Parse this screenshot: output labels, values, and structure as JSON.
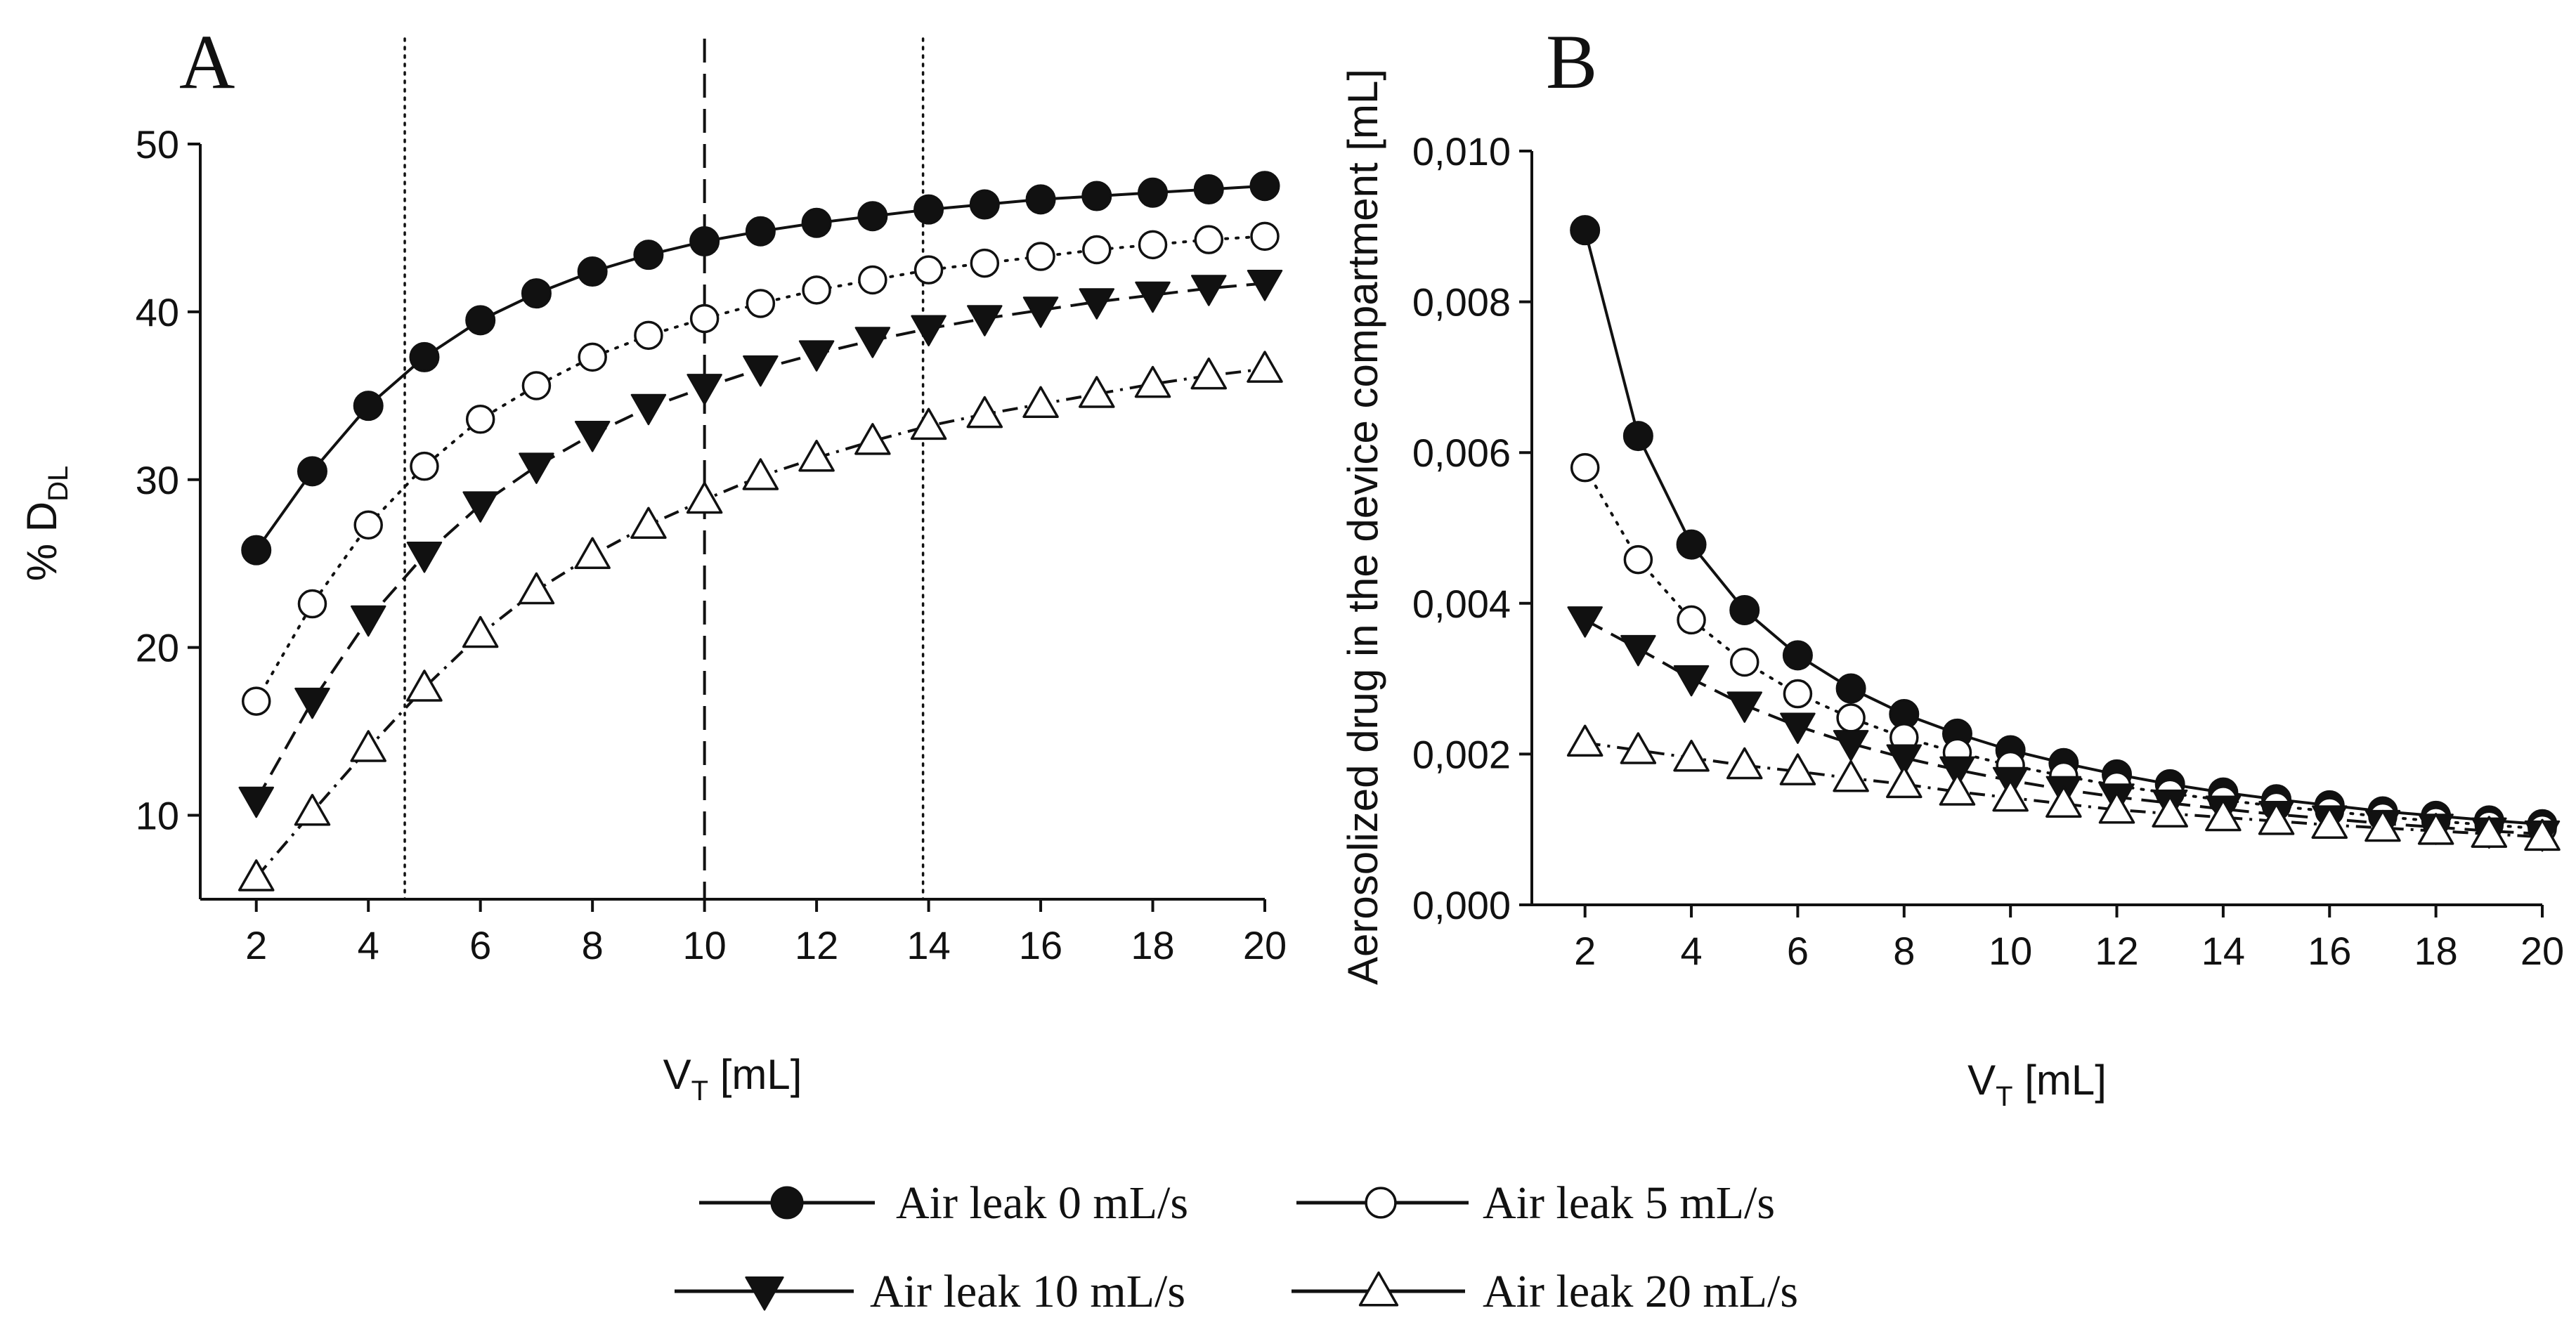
{
  "legend": [
    {
      "label": "Air leak 0 mL/s",
      "marker": "filled-circle",
      "line": "solid"
    },
    {
      "label": "Air leak 5 mL/s",
      "marker": "open-circle",
      "line": "dotted"
    },
    {
      "label": "Air leak 10 mL/s",
      "marker": "filled-triangle-down",
      "line": "dashed"
    },
    {
      "label": "Air leak 20 mL/s",
      "marker": "open-triangle-up",
      "line": "dash-dot"
    }
  ],
  "chart_data": [
    {
      "panel": "A",
      "type": "line",
      "xlabel_main": "V",
      "xlabel_sub": "T",
      "xlabel_unit": " [mL]",
      "ylabel_main": "% D",
      "ylabel_sub": "DL",
      "x": [
        2,
        3,
        4,
        5,
        6,
        7,
        8,
        9,
        10,
        11,
        12,
        13,
        14,
        15,
        16,
        17,
        18,
        19,
        20
      ],
      "xlim": [
        1,
        20
      ],
      "xticks": [
        2,
        4,
        6,
        8,
        10,
        12,
        14,
        16,
        18,
        20
      ],
      "xtick_labels": [
        "2",
        "4",
        "6",
        "8",
        "10",
        "12",
        "14",
        "16",
        "18",
        "20"
      ],
      "ylim": [
        5,
        50
      ],
      "yticks": [
        10,
        20,
        30,
        40,
        50
      ],
      "ytick_labels": [
        "10",
        "20",
        "30",
        "40",
        "50"
      ],
      "vlines": [
        {
          "x": 4.65,
          "style": "dotted"
        },
        {
          "x": 10.0,
          "style": "dashed"
        },
        {
          "x": 13.9,
          "style": "dotted"
        }
      ],
      "series": [
        {
          "name": "Air leak 0 mL/s",
          "values": [
            25.8,
            30.5,
            34.4,
            37.3,
            39.5,
            41.1,
            42.4,
            43.4,
            44.2,
            44.8,
            45.3,
            45.7,
            46.1,
            46.4,
            46.7,
            46.9,
            47.1,
            47.3,
            47.5
          ]
        },
        {
          "name": "Air leak 5 mL/s",
          "values": [
            16.8,
            22.6,
            27.3,
            30.8,
            33.6,
            35.6,
            37.3,
            38.6,
            39.6,
            40.5,
            41.3,
            41.9,
            42.5,
            42.9,
            43.3,
            43.7,
            44.0,
            44.3,
            44.5
          ]
        },
        {
          "name": "Air leak 10 mL/s",
          "values": [
            10.9,
            16.8,
            21.7,
            25.5,
            28.5,
            30.8,
            32.7,
            34.3,
            35.5,
            36.6,
            37.5,
            38.3,
            39.0,
            39.6,
            40.1,
            40.6,
            41.0,
            41.4,
            41.7
          ]
        },
        {
          "name": "Air leak 20 mL/s",
          "values": [
            6.3,
            10.2,
            14.0,
            17.6,
            20.8,
            23.4,
            25.5,
            27.3,
            28.8,
            30.2,
            31.3,
            32.3,
            33.2,
            33.9,
            34.5,
            35.1,
            35.7,
            36.2,
            36.6
          ]
        }
      ]
    },
    {
      "panel": "B",
      "type": "line",
      "xlabel_main": "V",
      "xlabel_sub": "T",
      "xlabel_unit": " [mL]",
      "ylabel": "Aerosolized drug in the device compartment [mL]",
      "x": [
        2,
        3,
        4,
        5,
        6,
        7,
        8,
        9,
        10,
        11,
        12,
        13,
        14,
        15,
        16,
        17,
        18,
        19,
        20
      ],
      "xlim": [
        1,
        20
      ],
      "xticks": [
        2,
        4,
        6,
        8,
        10,
        12,
        14,
        16,
        18,
        20
      ],
      "xtick_labels": [
        "2",
        "4",
        "6",
        "8",
        "10",
        "12",
        "14",
        "16",
        "18",
        "20"
      ],
      "ylim": [
        0,
        0.01
      ],
      "yticks": [
        0,
        0.002,
        0.004,
        0.006,
        0.008,
        0.01
      ],
      "ytick_labels": [
        "0,000",
        "0,002",
        "0,004",
        "0,006",
        "0,008",
        "0,010"
      ],
      "series": [
        {
          "name": "Air leak 0 mL/s",
          "values": [
            0.00895,
            0.00622,
            0.00478,
            0.00391,
            0.00331,
            0.00287,
            0.00253,
            0.00227,
            0.00205,
            0.00188,
            0.00173,
            0.0016,
            0.00149,
            0.0014,
            0.00132,
            0.00124,
            0.00118,
            0.00112,
            0.00107
          ]
        },
        {
          "name": "Air leak 5 mL/s",
          "values": [
            0.0058,
            0.00458,
            0.00378,
            0.00322,
            0.0028,
            0.00248,
            0.00222,
            0.00202,
            0.00185,
            0.00171,
            0.00158,
            0.00148,
            0.00139,
            0.00131,
            0.00124,
            0.00117,
            0.00111,
            0.00106,
            0.00101
          ]
        },
        {
          "name": "Air leak 10 mL/s",
          "values": [
            0.00378,
            0.0034,
            0.003,
            0.00265,
            0.00237,
            0.00214,
            0.00195,
            0.00179,
            0.00165,
            0.00153,
            0.00143,
            0.00135,
            0.00127,
            0.0012,
            0.00114,
            0.00108,
            0.00103,
            0.00098,
            0.00094
          ]
        },
        {
          "name": "Air leak 20 mL/s",
          "values": [
            0.00215,
            0.00205,
            0.00195,
            0.00185,
            0.00177,
            0.00168,
            0.0016,
            0.0015,
            0.00142,
            0.00134,
            0.00126,
            0.00121,
            0.00116,
            0.00111,
            0.00106,
            0.00102,
            0.00098,
            0.00094,
            0.0009
          ]
        }
      ]
    }
  ]
}
